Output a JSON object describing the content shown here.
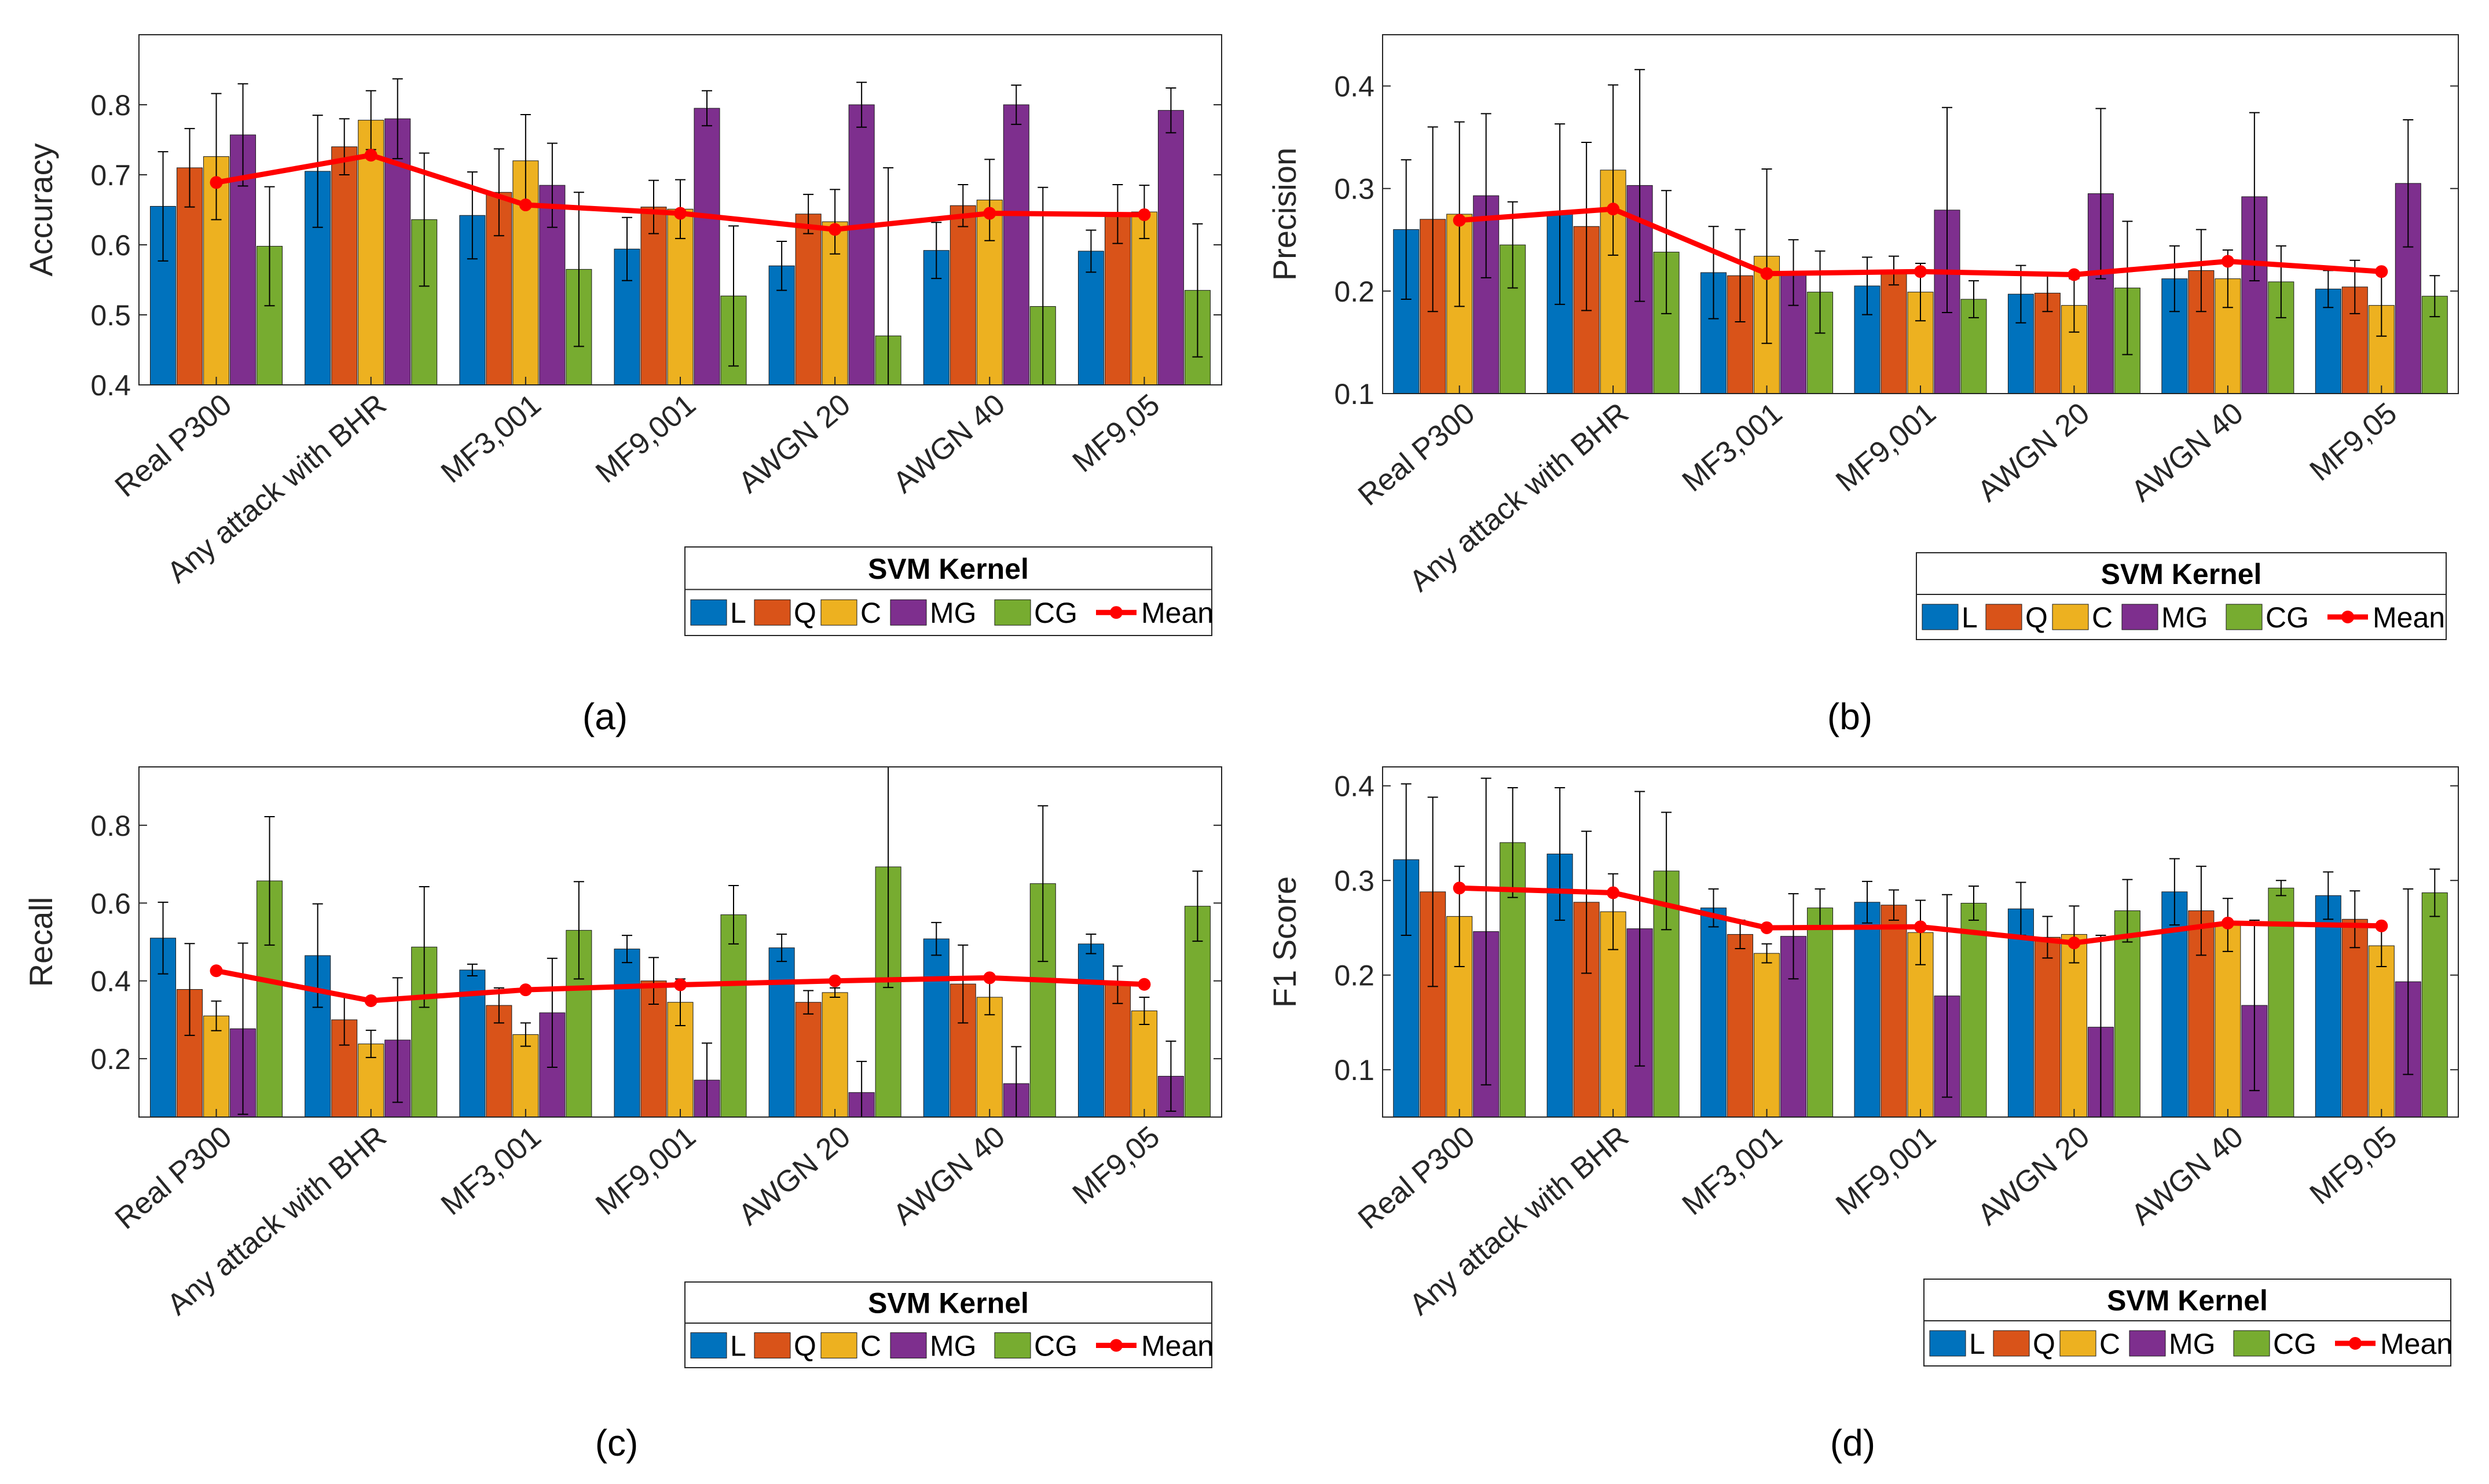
{
  "figure": {
    "legend_title": "SVM Kernel",
    "legend_entries": [
      "L",
      "Q",
      "C",
      "MG",
      "CG",
      "Mean"
    ],
    "colors": {
      "L": "#0072BD",
      "Q": "#D95319",
      "C": "#EDB120",
      "MG": "#7E2F8E",
      "CG": "#77AC30",
      "Mean": "#FF0000"
    }
  },
  "chart_data": [
    {
      "panel_label": "(a)",
      "type": "bar",
      "ylabel": "Accuracy",
      "ylim": [
        0.4,
        0.9
      ],
      "yticks": [
        "0.4",
        "0.5",
        "0.6",
        "0.7",
        "0.8"
      ],
      "categories": [
        "Real P300",
        "Any attack with BHR",
        "MF3,001",
        "MF9,001",
        "AWGN 20",
        "AWGN 40",
        "MF9,05"
      ],
      "series": [
        {
          "name": "L",
          "values": [
            0.655,
            0.705,
            0.642,
            0.594,
            0.57,
            0.592,
            0.591
          ],
          "errors": [
            0.078,
            0.08,
            0.062,
            0.045,
            0.035,
            0.04,
            0.03
          ]
        },
        {
          "name": "Q",
          "values": [
            0.71,
            0.74,
            0.675,
            0.654,
            0.644,
            0.656,
            0.644
          ],
          "errors": [
            0.056,
            0.04,
            0.062,
            0.038,
            0.028,
            0.03,
            0.042
          ]
        },
        {
          "name": "C",
          "values": [
            0.726,
            0.778,
            0.72,
            0.651,
            0.633,
            0.664,
            0.647
          ],
          "errors": [
            0.09,
            0.042,
            0.066,
            0.042,
            0.046,
            0.058,
            0.038
          ]
        },
        {
          "name": "MG",
          "values": [
            0.757,
            0.78,
            0.685,
            0.795,
            0.8,
            0.8,
            0.792
          ],
          "errors": [
            0.073,
            0.057,
            0.06,
            0.025,
            0.032,
            0.028,
            0.032
          ]
        },
        {
          "name": "CG",
          "values": [
            0.598,
            0.636,
            0.565,
            0.527,
            0.47,
            0.512,
            0.535
          ],
          "errors": [
            0.085,
            0.095,
            0.11,
            0.1,
            0.24,
            0.17,
            0.095
          ]
        }
      ],
      "mean": [
        0.689,
        0.728,
        0.657,
        0.645,
        0.622,
        0.645,
        0.643
      ]
    },
    {
      "panel_label": "(b)",
      "type": "bar",
      "ylabel": "Precision",
      "ylim": [
        0.1,
        0.45
      ],
      "yticks": [
        "0.1",
        "0.2",
        "0.3",
        "0.4"
      ],
      "categories": [
        "Real P300",
        "Any attack with BHR",
        "MF3,001",
        "MF9,001",
        "AWGN 20",
        "AWGN 40",
        "MF9,05"
      ],
      "series": [
        {
          "name": "L",
          "values": [
            0.26,
            0.275,
            0.218,
            0.205,
            0.197,
            0.212,
            0.202
          ],
          "errors": [
            0.068,
            0.088,
            0.045,
            0.028,
            0.028,
            0.032,
            0.018
          ]
        },
        {
          "name": "Q",
          "values": [
            0.27,
            0.263,
            0.215,
            0.22,
            0.198,
            0.22,
            0.204
          ],
          "errors": [
            0.09,
            0.082,
            0.045,
            0.014,
            0.018,
            0.04,
            0.026
          ]
        },
        {
          "name": "C",
          "values": [
            0.275,
            0.318,
            0.234,
            0.199,
            0.186,
            0.212,
            0.186
          ],
          "errors": [
            0.09,
            0.083,
            0.085,
            0.028,
            0.026,
            0.028,
            0.03
          ]
        },
        {
          "name": "MG",
          "values": [
            0.293,
            0.303,
            0.218,
            0.279,
            0.295,
            0.292,
            0.305
          ],
          "errors": [
            0.08,
            0.113,
            0.032,
            0.1,
            0.083,
            0.082,
            0.062
          ]
        },
        {
          "name": "CG",
          "values": [
            0.245,
            0.238,
            0.199,
            0.192,
            0.203,
            0.209,
            0.195
          ],
          "errors": [
            0.042,
            0.06,
            0.04,
            0.018,
            0.065,
            0.035,
            0.02
          ]
        }
      ],
      "mean": [
        0.269,
        0.28,
        0.217,
        0.219,
        0.216,
        0.229,
        0.219
      ]
    },
    {
      "panel_label": "(c)",
      "type": "bar",
      "ylabel": "Recall",
      "ylim": [
        0.05,
        0.95
      ],
      "yticks": [
        "0.2",
        "0.4",
        "0.6",
        "0.8"
      ],
      "categories": [
        "Real P300",
        "Any attack with BHR",
        "MF3,001",
        "MF9,001",
        "AWGN 20",
        "AWGN 40",
        "MF9,05"
      ],
      "series": [
        {
          "name": "L",
          "values": [
            0.51,
            0.465,
            0.428,
            0.482,
            0.485,
            0.508,
            0.495
          ],
          "errors": [
            0.092,
            0.133,
            0.015,
            0.035,
            0.035,
            0.042,
            0.025
          ]
        },
        {
          "name": "Q",
          "values": [
            0.378,
            0.3,
            0.337,
            0.4,
            0.345,
            0.392,
            0.39
          ],
          "errors": [
            0.118,
            0.065,
            0.045,
            0.06,
            0.03,
            0.1,
            0.048
          ]
        },
        {
          "name": "C",
          "values": [
            0.31,
            0.238,
            0.262,
            0.345,
            0.37,
            0.358,
            0.323
          ],
          "errors": [
            0.038,
            0.035,
            0.03,
            0.06,
            0.012,
            0.045,
            0.035
          ]
        },
        {
          "name": "MG",
          "values": [
            0.277,
            0.248,
            0.318,
            0.145,
            0.113,
            0.136,
            0.155
          ],
          "errors": [
            0.22,
            0.16,
            0.14,
            0.095,
            0.08,
            0.095,
            0.09
          ]
        },
        {
          "name": "CG",
          "values": [
            0.657,
            0.487,
            0.53,
            0.57,
            0.693,
            0.65,
            0.592
          ],
          "errors": [
            0.165,
            0.155,
            0.125,
            0.075,
            0.31,
            0.2,
            0.09
          ]
        }
      ],
      "mean": [
        0.426,
        0.349,
        0.377,
        0.39,
        0.4,
        0.408,
        0.391
      ]
    },
    {
      "panel_label": "(d)",
      "type": "bar",
      "ylabel": "F1 Score",
      "ylim": [
        0.05,
        0.42
      ],
      "yticks": [
        "0.1",
        "0.2",
        "0.3",
        "0.4"
      ],
      "categories": [
        "Real P300",
        "Any attack with BHR",
        "MF3,001",
        "MF9,001",
        "AWGN 20",
        "AWGN 40",
        "MF9,05"
      ],
      "series": [
        {
          "name": "L",
          "values": [
            0.322,
            0.328,
            0.271,
            0.277,
            0.27,
            0.288,
            0.284
          ],
          "errors": [
            0.08,
            0.07,
            0.02,
            0.022,
            0.028,
            0.035,
            0.025
          ]
        },
        {
          "name": "Q",
          "values": [
            0.288,
            0.277,
            0.243,
            0.274,
            0.24,
            0.268,
            0.259
          ],
          "errors": [
            0.1,
            0.075,
            0.015,
            0.016,
            0.022,
            0.047,
            0.03
          ]
        },
        {
          "name": "C",
          "values": [
            0.262,
            0.267,
            0.223,
            0.245,
            0.243,
            0.253,
            0.231
          ],
          "errors": [
            0.053,
            0.04,
            0.01,
            0.034,
            0.03,
            0.028,
            0.022
          ]
        },
        {
          "name": "MG",
          "values": [
            0.246,
            0.249,
            0.241,
            0.178,
            0.145,
            0.168,
            0.193
          ],
          "errors": [
            0.162,
            0.145,
            0.045,
            0.107,
            0.097,
            0.09,
            0.098
          ]
        },
        {
          "name": "CG",
          "values": [
            0.34,
            0.31,
            0.271,
            0.276,
            0.268,
            0.292,
            0.287
          ],
          "errors": [
            0.058,
            0.062,
            0.02,
            0.018,
            0.033,
            0.008,
            0.025
          ]
        }
      ],
      "mean": [
        0.292,
        0.287,
        0.25,
        0.251,
        0.234,
        0.255,
        0.252
      ]
    }
  ]
}
